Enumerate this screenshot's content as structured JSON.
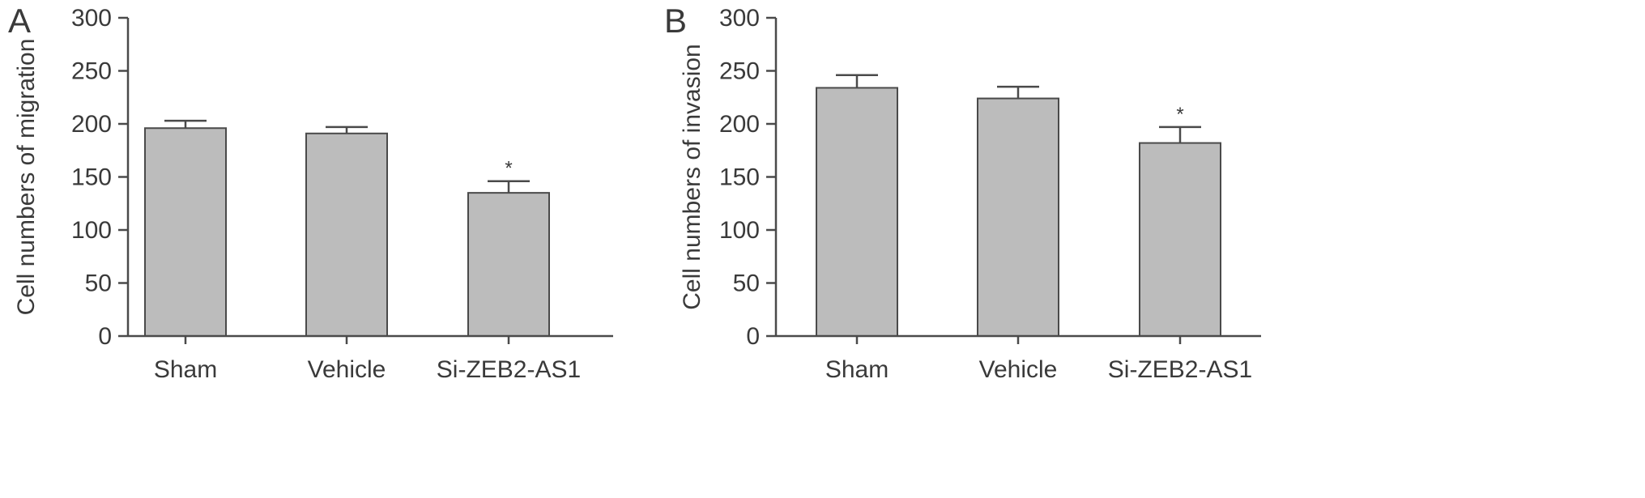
{
  "colors": {
    "bar_fill": "#bcbcbc",
    "bar_stroke": "#4a4a4a",
    "axis": "#4a4a4a",
    "text": "#3a3a3a"
  },
  "chart_data": [
    {
      "panel": "A",
      "type": "bar",
      "categories": [
        "Sham",
        "Vehicle",
        "Si-ZEB2-AS1"
      ],
      "values": [
        196,
        191,
        135
      ],
      "errors": [
        7,
        6,
        11
      ],
      "significance": [
        "",
        "",
        "*"
      ],
      "ylabel": "Cell numbers of migration",
      "ylim": [
        0,
        300
      ],
      "yticks": [
        0,
        50,
        100,
        150,
        200,
        250,
        300
      ],
      "grid": false
    },
    {
      "panel": "B",
      "type": "bar",
      "categories": [
        "Sham",
        "Vehicle",
        "Si-ZEB2-AS1"
      ],
      "values": [
        234,
        224,
        182
      ],
      "errors": [
        12,
        11,
        15
      ],
      "significance": [
        "",
        "",
        "*"
      ],
      "ylabel": "Cell numbers of invasion",
      "ylim": [
        0,
        300
      ],
      "yticks": [
        0,
        50,
        100,
        150,
        200,
        250,
        300
      ],
      "grid": false
    }
  ]
}
